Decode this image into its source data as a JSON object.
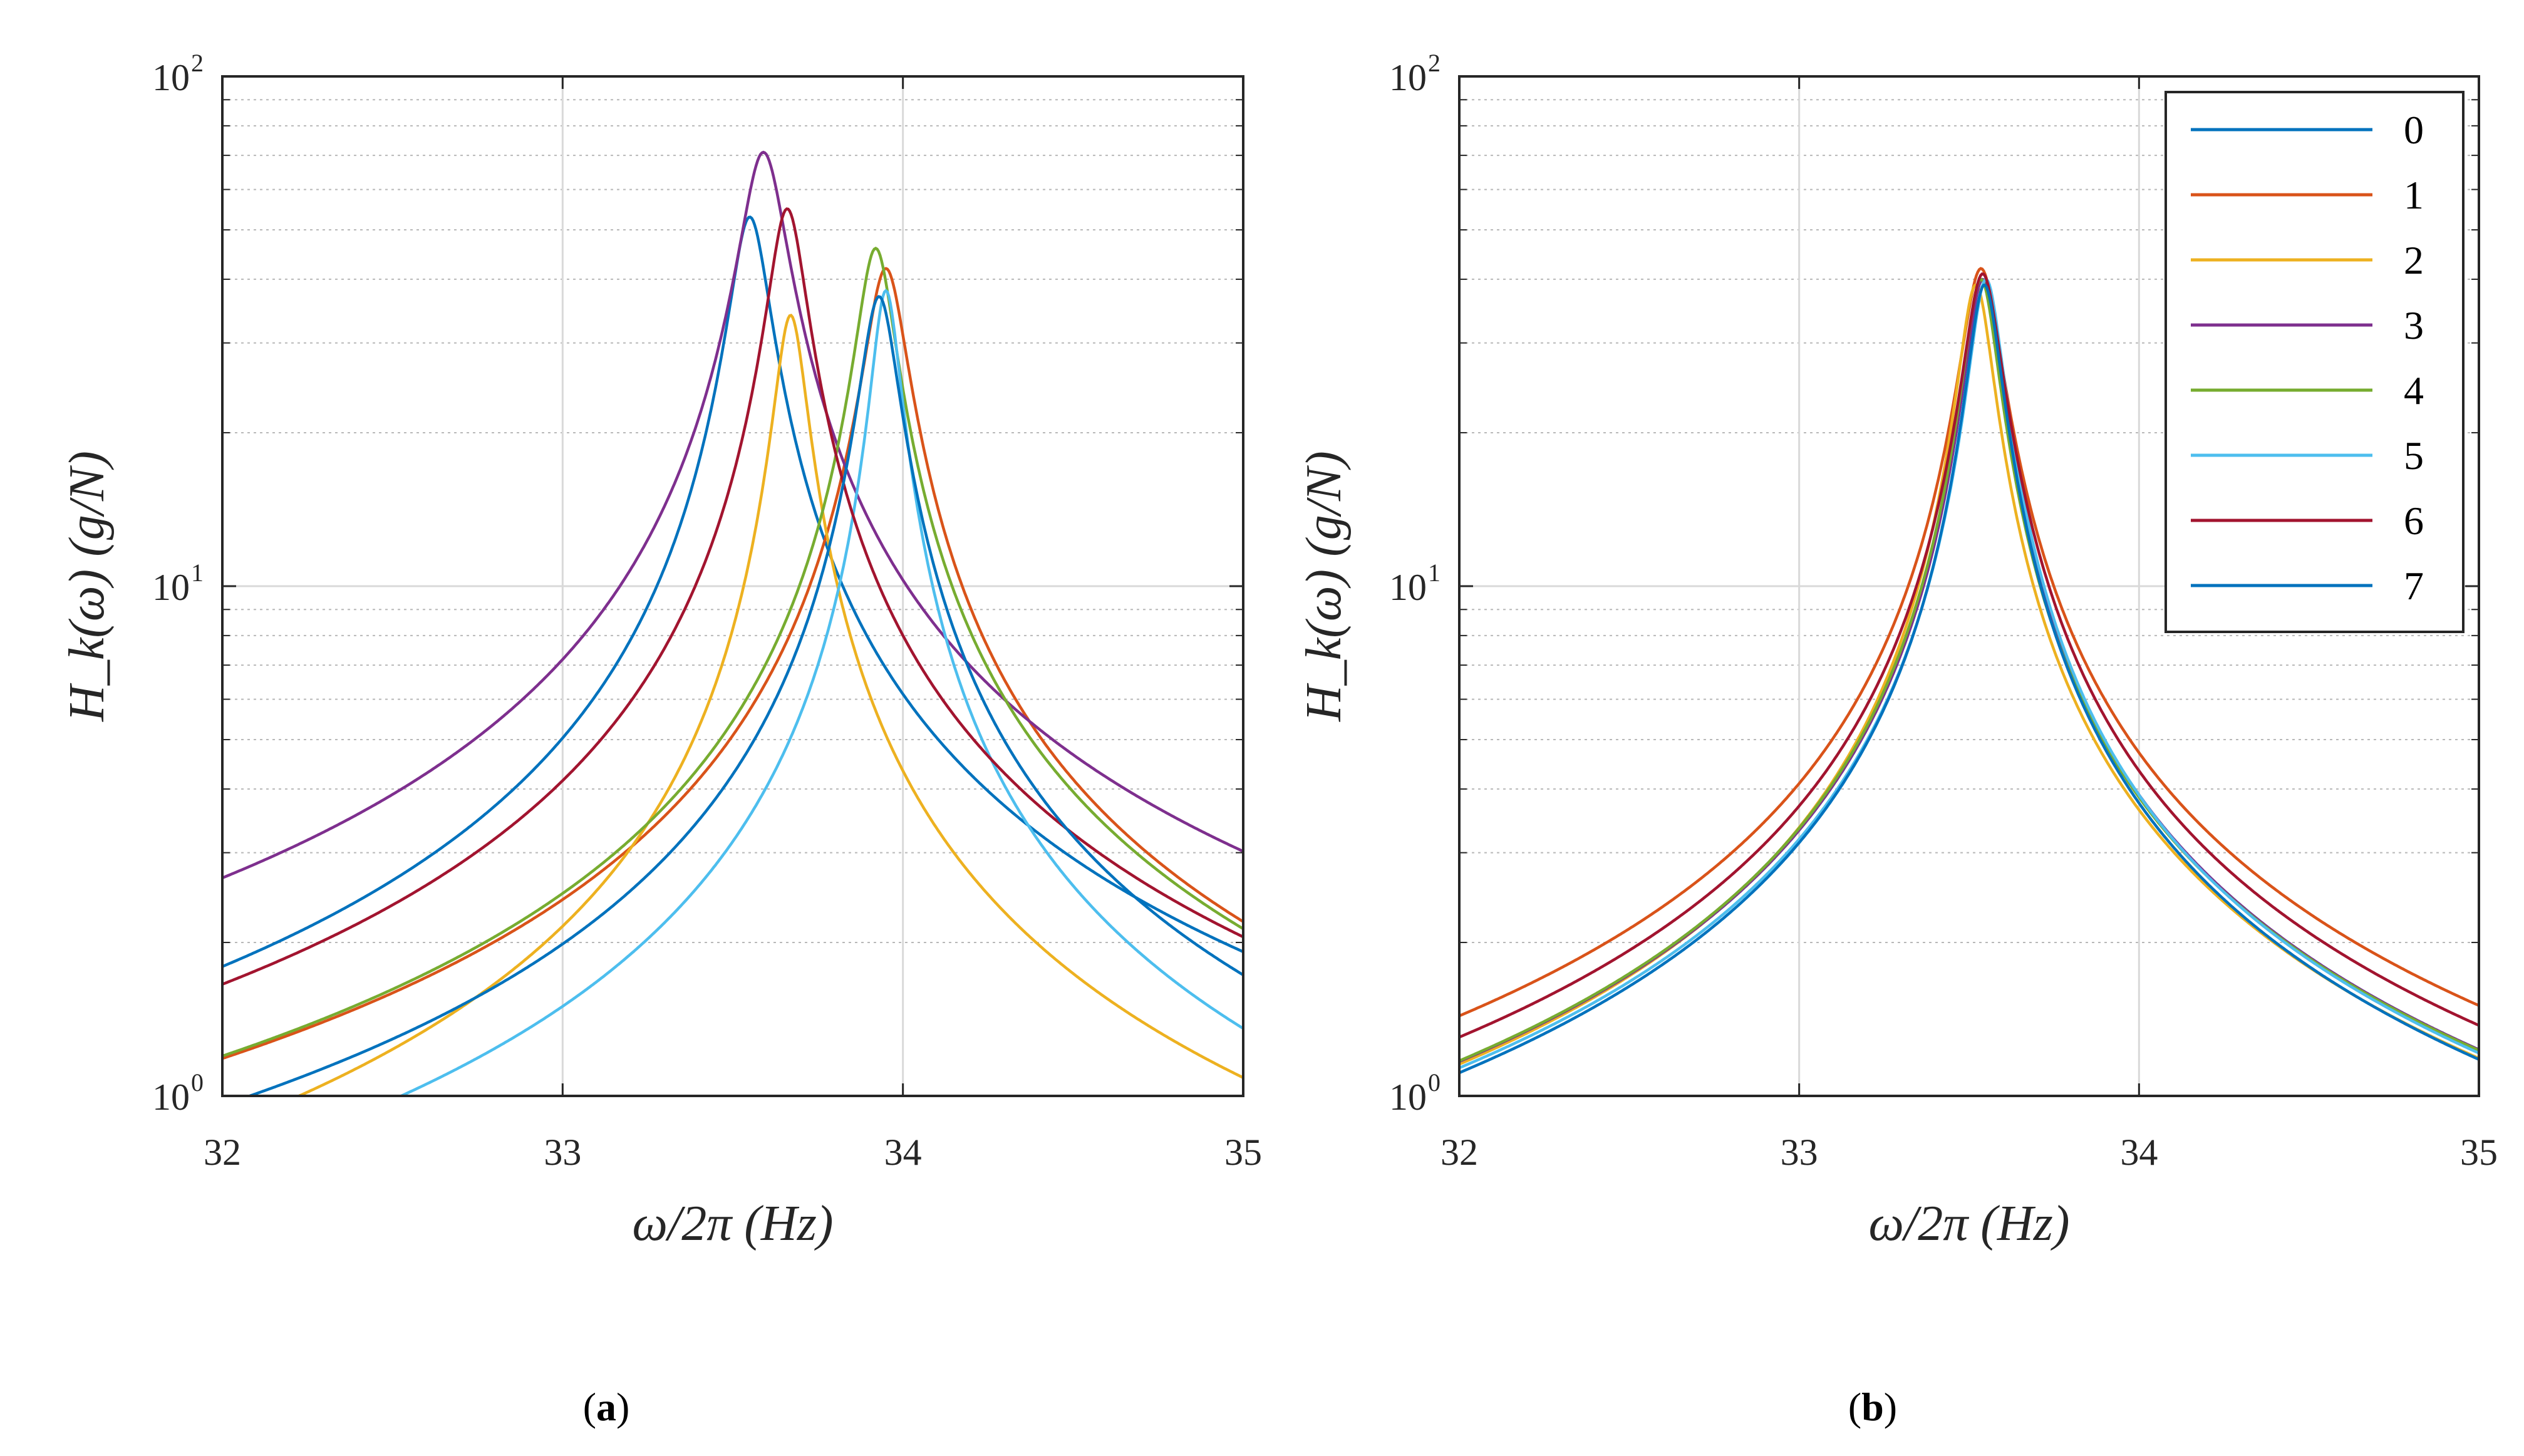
{
  "figure": {
    "panels": [
      "a",
      "b"
    ],
    "panel_labels": [
      {
        "open": "(",
        "letter": "a",
        "close": ")"
      },
      {
        "open": "(",
        "letter": "b",
        "close": ")"
      }
    ]
  },
  "colors": {
    "0": "#0072BD",
    "1": "#D95319",
    "2": "#EDB120",
    "3": "#7E2F8E",
    "4": "#77AC30",
    "5": "#4DBEEE",
    "6": "#A2142F",
    "7": "#0072BD",
    "axis": "#262626",
    "grid_major": "#d9d9d9",
    "grid_minor": "#b8b8b8"
  },
  "chart_data": [
    {
      "type": "line",
      "panel": "a",
      "yscale": "log",
      "xlabel": "ω/2π  (Hz)",
      "ylabel": "H_k(ω)  (g/N)",
      "xlim": [
        32,
        35
      ],
      "ylim": [
        1,
        100
      ],
      "xticks": [
        "32",
        "33",
        "34",
        "35"
      ],
      "yticks": [
        {
          "base": "10",
          "exp": "0"
        },
        {
          "base": "10",
          "exp": "1"
        },
        {
          "base": "10",
          "exp": "2"
        }
      ],
      "grid": "major + minor (y)",
      "series": [
        {
          "name": "0",
          "f0": 33.55,
          "peak": 53,
          "width": 0.105,
          "color_key": "0"
        },
        {
          "name": "1",
          "f0": 33.95,
          "peak": 42,
          "width": 0.11,
          "color_key": "1"
        },
        {
          "name": "2",
          "f0": 33.67,
          "peak": 34,
          "width": 0.085,
          "color_key": "2"
        },
        {
          "name": "3",
          "f0": 33.59,
          "peak": 71,
          "width": 0.12,
          "color_key": "3"
        },
        {
          "name": "4",
          "f0": 33.92,
          "peak": 46,
          "width": 0.1,
          "color_key": "4"
        },
        {
          "name": "5",
          "f0": 33.95,
          "peak": 38,
          "width": 0.075,
          "color_key": "5"
        },
        {
          "name": "6",
          "f0": 33.66,
          "peak": 55,
          "width": 0.1,
          "color_key": "6"
        },
        {
          "name": "7",
          "f0": 33.93,
          "peak": 37,
          "width": 0.1,
          "color_key": "7"
        }
      ]
    },
    {
      "type": "line",
      "panel": "b",
      "yscale": "log",
      "xlabel": "ω/2π  (Hz)",
      "ylabel": "H_k(ω)  (g/N)",
      "xlim": [
        32,
        35
      ],
      "ylim": [
        1,
        100
      ],
      "xticks": [
        "32",
        "33",
        "34",
        "35"
      ],
      "yticks": [
        {
          "base": "10",
          "exp": "0"
        },
        {
          "base": "10",
          "exp": "1"
        },
        {
          "base": "10",
          "exp": "2"
        }
      ],
      "grid": "major + minor (y)",
      "legend": {
        "position": "top-right",
        "entries": [
          "0",
          "1",
          "2",
          "3",
          "4",
          "5",
          "6",
          "7"
        ]
      },
      "series": [
        {
          "name": "0",
          "f0": 33.54,
          "peak": 40,
          "width": 0.09,
          "color_key": "0"
        },
        {
          "name": "1",
          "f0": 33.535,
          "peak": 42,
          "width": 0.105,
          "color_key": "1"
        },
        {
          "name": "2",
          "f0": 33.52,
          "peak": 39,
          "width": 0.09,
          "color_key": "2"
        },
        {
          "name": "3",
          "f0": 33.54,
          "peak": 40,
          "width": 0.09,
          "color_key": "3"
        },
        {
          "name": "4",
          "f0": 33.535,
          "peak": 40,
          "width": 0.09,
          "color_key": "4"
        },
        {
          "name": "5",
          "f0": 33.55,
          "peak": 40,
          "width": 0.088,
          "color_key": "5"
        },
        {
          "name": "6",
          "f0": 33.54,
          "peak": 41,
          "width": 0.098,
          "color_key": "6"
        },
        {
          "name": "7",
          "f0": 33.545,
          "peak": 39,
          "width": 0.088,
          "color_key": "7"
        }
      ]
    }
  ]
}
